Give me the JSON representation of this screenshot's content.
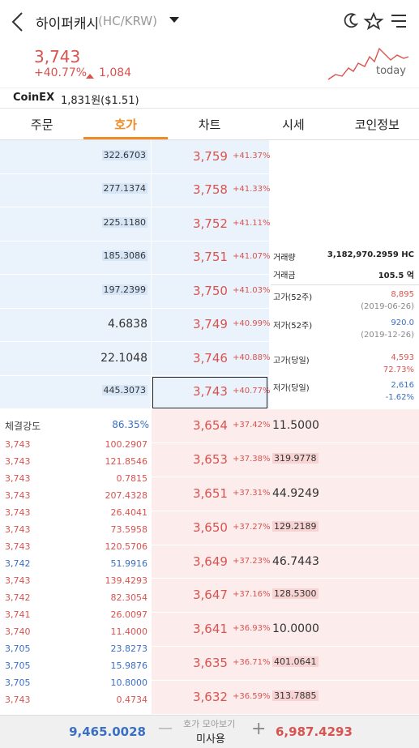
{
  "header": {
    "title": "하이퍼캐시",
    "pair": "(HC/KRW)",
    "price": "3,743",
    "change_rate": "+40.77%",
    "change": "1,084",
    "sparkline_label": "today"
  },
  "exchange": {
    "name": "CoinEX",
    "price": "1,831원($1.51)"
  },
  "tabs": [
    "주문",
    "호가",
    "차트",
    "시세",
    "코인정보"
  ],
  "asks": [
    {
      "volume": "322.6703",
      "price": "3,759",
      "rate": "+41.37%"
    },
    {
      "volume": "277.1374",
      "price": "3,758",
      "rate": "+41.33%"
    },
    {
      "volume": "225.1180",
      "price": "3,752",
      "rate": "+41.11%"
    },
    {
      "volume": "185.3086",
      "price": "3,751",
      "rate": "+41.07%"
    },
    {
      "volume": "197.2399",
      "price": "3,750",
      "rate": "+41.03%"
    },
    {
      "volume": "4.6838",
      "price": "3,749",
      "rate": "+40.99%"
    },
    {
      "volume": "22.1048",
      "price": "3,746",
      "rate": "+40.88%"
    },
    {
      "volume": "445.3073",
      "price": "3,743",
      "rate": "+40.77%"
    }
  ],
  "info": [
    {
      "label": "거래량",
      "value": "3,182,970.2959 HC"
    },
    {
      "label": "거래금",
      "value": "105.5 억"
    },
    {
      "label": "고가(52주)",
      "value": "8,895",
      "sub": "(2019-06-26)",
      "color": "#d9534f"
    },
    {
      "label": "저가(52주)",
      "value": "920.0",
      "sub": "(2019-12-26)",
      "color": "#3a6fc4"
    },
    {
      "label": "고가(당일)",
      "value": "4,593",
      "sub": "72.73%",
      "color": "#d9534f"
    },
    {
      "label": "저가(당일)",
      "value": "2,616",
      "sub": "-1.62%",
      "color": "#3a6fc4"
    }
  ],
  "strength": {
    "label": "체결강도",
    "value": "86.35%"
  },
  "trades": [
    {
      "price": "3,743",
      "volume": "100.2907",
      "color": "#d9534f"
    },
    {
      "price": "3,743",
      "volume": "121.8546",
      "color": "#d9534f"
    },
    {
      "price": "3,743",
      "volume": "0.7815",
      "color": "#d9534f"
    },
    {
      "price": "3,743",
      "volume": "207.4328",
      "color": "#d9534f"
    },
    {
      "price": "3,743",
      "volume": "26.4041",
      "color": "#d9534f"
    },
    {
      "price": "3,743",
      "volume": "73.5958",
      "color": "#d9534f"
    },
    {
      "price": "3,743",
      "volume": "120.5706",
      "color": "#d9534f"
    },
    {
      "price": "3,742",
      "volume": "51.9916",
      "color": "#3a6fc4"
    },
    {
      "price": "3,743",
      "volume": "139.4293",
      "color": "#d9534f"
    },
    {
      "price": "3,742",
      "volume": "82.3054",
      "color": "#d9534f"
    },
    {
      "price": "3,741",
      "volume": "26.0097",
      "color": "#d9534f"
    },
    {
      "price": "3,740",
      "volume": "11.4000",
      "color": "#d9534f"
    },
    {
      "price": "3,705",
      "volume": "23.8273",
      "color": "#3a6fc4"
    },
    {
      "price": "3,705",
      "volume": "15.9876",
      "color": "#3a6fc4"
    },
    {
      "price": "3,705",
      "volume": "10.8000",
      "color": "#3a6fc4"
    },
    {
      "price": "3,743",
      "volume": "0.4734",
      "color": "#d9534f"
    }
  ],
  "bids": [
    {
      "price": "3,654",
      "rate": "+37.42%",
      "volume": "11.5000"
    },
    {
      "price": "3,653",
      "rate": "+37.38%",
      "volume": "319.9778"
    },
    {
      "price": "3,651",
      "rate": "+37.31%",
      "volume": "44.9249"
    },
    {
      "price": "3,650",
      "rate": "+37.27%",
      "volume": "129.2189"
    },
    {
      "price": "3,649",
      "rate": "+37.23%",
      "volume": "46.7443"
    },
    {
      "price": "3,647",
      "rate": "+37.16%",
      "volume": "128.5300"
    },
    {
      "price": "3,641",
      "rate": "+36.93%",
      "volume": "10.0000"
    },
    {
      "price": "3,635",
      "rate": "+36.71%",
      "volume": "401.0641"
    },
    {
      "price": "3,632",
      "rate": "+36.59%",
      "volume": "313.7885"
    }
  ],
  "footer": {
    "ask_total": "9,465.0028",
    "label": "호가 모아보기",
    "mode": "미사용",
    "bid_total": "6,987.4293"
  }
}
